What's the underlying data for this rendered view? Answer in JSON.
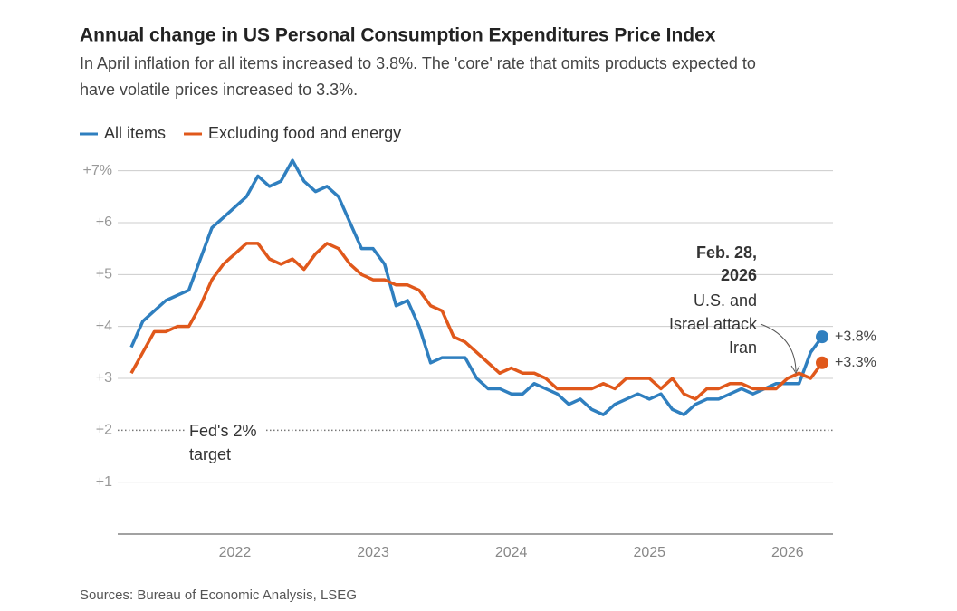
{
  "chart_data": {
    "type": "line",
    "title": "Annual change in US Personal Consumption Expenditures Price Index",
    "subtitle": [
      "In April inflation for all items increased to 3.8%. The 'core' rate that omits products expected to",
      "have volatile prices increased to 3.3%."
    ],
    "source": "Sources: Bureau of Economic Analysis, LSEG",
    "categories": [
      null,
      null,
      null,
      null,
      null,
      null,
      null,
      null,
      null,
      "2022",
      null,
      null,
      null,
      null,
      null,
      null,
      null,
      null,
      null,
      null,
      null,
      "2023",
      null,
      null,
      null,
      null,
      null,
      null,
      null,
      null,
      null,
      null,
      null,
      "2024",
      null,
      null,
      null,
      null,
      null,
      null,
      null,
      null,
      null,
      null,
      null,
      "2025",
      null,
      null,
      null,
      null,
      null,
      null,
      null,
      null,
      null,
      null,
      null,
      "2026",
      null,
      null,
      null
    ],
    "series": [
      {
        "name": "All items",
        "color": "#2f7fbf",
        "end_label": "+3.8%",
        "values": [
          3.6,
          4.1,
          4.3,
          4.5,
          4.6,
          4.7,
          5.3,
          5.9,
          6.1,
          6.3,
          6.5,
          6.9,
          6.7,
          6.8,
          7.2,
          6.8,
          6.6,
          6.7,
          6.5,
          6.0,
          5.5,
          5.5,
          5.2,
          4.4,
          4.5,
          4.0,
          3.3,
          3.4,
          3.4,
          3.4,
          3.0,
          2.8,
          2.8,
          2.7,
          2.7,
          2.9,
          2.8,
          2.7,
          2.5,
          2.6,
          2.4,
          2.3,
          2.5,
          2.6,
          2.7,
          2.6,
          2.7,
          2.4,
          2.3,
          2.5,
          2.6,
          2.6,
          2.7,
          2.8,
          2.7,
          2.8,
          2.9,
          2.9,
          2.9,
          3.5,
          3.8
        ]
      },
      {
        "name": "Excluding food and energy",
        "color": "#e0581b",
        "end_label": "+3.3%",
        "values": [
          3.1,
          3.5,
          3.9,
          3.9,
          4.0,
          4.0,
          4.4,
          4.9,
          5.2,
          5.4,
          5.6,
          5.6,
          5.3,
          5.2,
          5.3,
          5.1,
          5.4,
          5.6,
          5.5,
          5.2,
          5.0,
          4.9,
          4.9,
          4.8,
          4.8,
          4.7,
          4.4,
          4.3,
          3.8,
          3.7,
          3.5,
          3.3,
          3.1,
          3.2,
          3.1,
          3.1,
          3.0,
          2.8,
          2.8,
          2.8,
          2.8,
          2.9,
          2.8,
          3.0,
          3.0,
          3.0,
          2.8,
          3.0,
          2.7,
          2.6,
          2.8,
          2.8,
          2.9,
          2.9,
          2.8,
          2.8,
          2.8,
          3.0,
          3.1,
          3.0,
          3.3
        ]
      }
    ],
    "ylim": [
      0,
      7.5
    ],
    "yticks": [
      {
        "value": 1,
        "label": "+1"
      },
      {
        "value": 2,
        "label": "+2"
      },
      {
        "value": 3,
        "label": "+3"
      },
      {
        "value": 4,
        "label": "+4"
      },
      {
        "value": 5,
        "label": "+5"
      },
      {
        "value": 6,
        "label": "+6"
      },
      {
        "value": 7,
        "label": "+7%"
      }
    ],
    "grid": true,
    "legend": "top-left",
    "fed_target": {
      "value": 2,
      "label": [
        "Fed's 2%",
        "target"
      ]
    },
    "event": {
      "title": [
        "Feb. 28,",
        "2026"
      ],
      "text": [
        "U.S. and",
        "Israel attack",
        "Iran"
      ]
    }
  }
}
